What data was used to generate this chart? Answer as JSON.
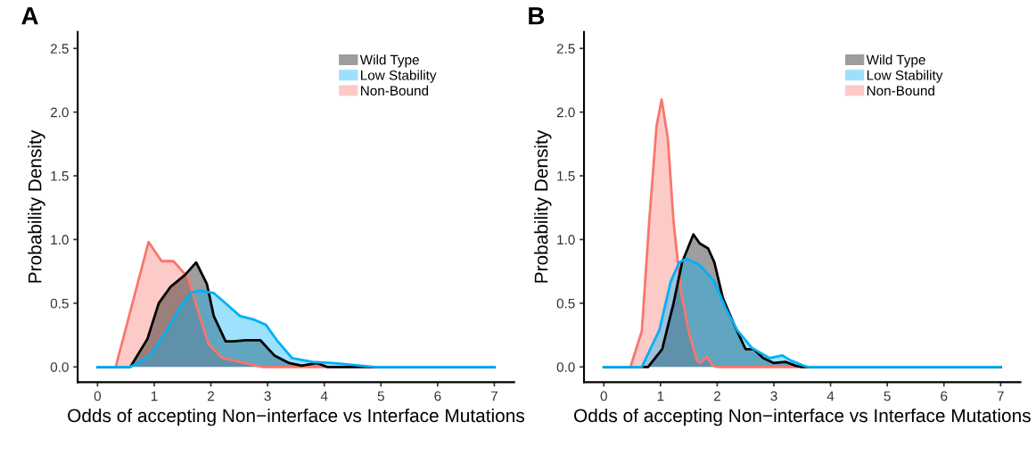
{
  "chart_data": [
    {
      "type": "area",
      "title": "A",
      "xlabel": "Odds of accepting Non−interface vs Interface Mutations",
      "ylabel": "Probability Density",
      "xlim": [
        -0.35,
        7.35
      ],
      "xticks": [
        0,
        1,
        2,
        3,
        4,
        5,
        6,
        7
      ],
      "ylim": [
        -0.12,
        2.63
      ],
      "yticks": [
        {
          "value": 0,
          "label": "0.0"
        },
        {
          "value": 0.5,
          "label": "0.5"
        },
        {
          "value": 1,
          "label": "1.0"
        },
        {
          "value": 1.5,
          "label": "1.5"
        },
        {
          "value": 2,
          "label": "2.0"
        },
        {
          "value": 2.5,
          "label": "2.5"
        }
      ],
      "grid": false,
      "legend": "top right",
      "series": [
        {
          "name": "Wild Type",
          "color": "#000000",
          "x": [
            0,
            0.58,
            0.88,
            1.08,
            1.29,
            1.54,
            1.74,
            1.93,
            2.05,
            2.26,
            2.4,
            2.61,
            2.87,
            3.12,
            3.38,
            3.6,
            3.87,
            4.05,
            7
          ],
          "values": [
            0,
            0,
            0.22,
            0.5,
            0.63,
            0.72,
            0.82,
            0.65,
            0.4,
            0.2,
            0.2,
            0.21,
            0.21,
            0.09,
            0.03,
            0.01,
            0.03,
            0,
            0
          ]
        },
        {
          "name": "Low Stability",
          "color": "#00b0f6",
          "x": [
            0,
            0.58,
            0.93,
            1.24,
            1.44,
            1.65,
            1.8,
            2.05,
            2.31,
            2.51,
            2.77,
            2.97,
            3.18,
            3.43,
            3.79,
            4.14,
            4.65,
            4.9,
            7
          ],
          "values": [
            0,
            0,
            0.09,
            0.3,
            0.46,
            0.58,
            0.6,
            0.58,
            0.48,
            0.4,
            0.37,
            0.33,
            0.2,
            0.07,
            0.04,
            0.03,
            0.01,
            0,
            0
          ]
        },
        {
          "name": "Non-Bound",
          "color": "#f8766d",
          "x": [
            0,
            0.32,
            0.9,
            1.13,
            1.34,
            1.6,
            1.8,
            1.96,
            2.2,
            2.6,
            2.9,
            7
          ],
          "values": [
            0,
            0,
            0.98,
            0.83,
            0.83,
            0.7,
            0.4,
            0.18,
            0.07,
            0.03,
            0,
            0
          ]
        }
      ]
    },
    {
      "type": "area",
      "title": "B",
      "xlabel": "Odds of accepting Non−interface vs Interface Mutations",
      "ylabel": "Probability Density",
      "xlim": [
        -0.35,
        7.35
      ],
      "xticks": [
        0,
        1,
        2,
        3,
        4,
        5,
        6,
        7
      ],
      "ylim": [
        -0.12,
        2.63
      ],
      "yticks": [
        {
          "value": 0,
          "label": "0.0"
        },
        {
          "value": 0.5,
          "label": "0.5"
        },
        {
          "value": 1,
          "label": "1.0"
        },
        {
          "value": 1.5,
          "label": "1.5"
        },
        {
          "value": 2,
          "label": "2.0"
        },
        {
          "value": 2.5,
          "label": "2.5"
        }
      ],
      "grid": false,
      "legend": "top right",
      "series": [
        {
          "name": "Wild Type",
          "color": "#000000",
          "x": [
            0,
            0.78,
            1.03,
            1.23,
            1.38,
            1.58,
            1.69,
            1.84,
            1.95,
            2.1,
            2.3,
            2.5,
            2.64,
            2.81,
            3.0,
            3.2,
            3.38,
            3.48,
            7
          ],
          "values": [
            0,
            0,
            0.14,
            0.5,
            0.82,
            1.04,
            0.97,
            0.93,
            0.82,
            0.54,
            0.33,
            0.14,
            0.14,
            0.07,
            0.03,
            0.04,
            0.01,
            0,
            0
          ]
        },
        {
          "name": "Low Stability",
          "color": "#00b0f6",
          "x": [
            0,
            0.67,
            0.98,
            1.18,
            1.33,
            1.46,
            1.69,
            1.95,
            2.15,
            2.35,
            2.61,
            2.92,
            3.15,
            3.3,
            3.52,
            3.6,
            7
          ],
          "values": [
            0,
            0,
            0.29,
            0.67,
            0.82,
            0.85,
            0.8,
            0.67,
            0.46,
            0.29,
            0.15,
            0.07,
            0.09,
            0.05,
            0.01,
            0,
            0
          ]
        },
        {
          "name": "Non-Bound",
          "color": "#f8766d",
          "x": [
            0,
            0.47,
            0.67,
            0.8,
            0.93,
            1.02,
            1.13,
            1.23,
            1.36,
            1.49,
            1.64,
            1.7,
            1.82,
            1.92,
            2.0,
            7
          ],
          "values": [
            0,
            0,
            0.28,
            1.14,
            1.89,
            2.1,
            1.79,
            1.14,
            0.6,
            0.29,
            0.05,
            0.03,
            0.08,
            0.01,
            0,
            0
          ]
        }
      ]
    }
  ]
}
